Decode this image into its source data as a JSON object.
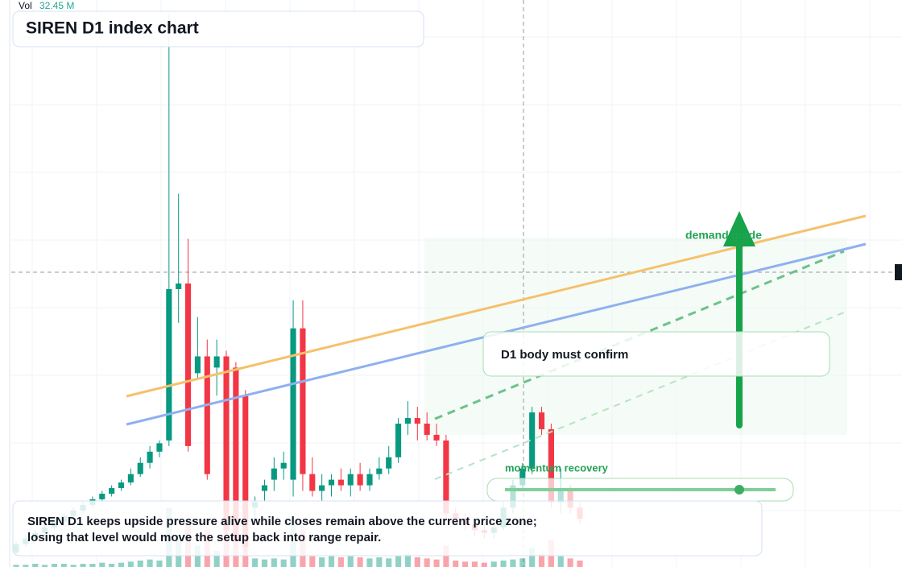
{
  "chart_data": {
    "type": "candlestick",
    "title": "SIREN D1 index chart",
    "up_color": "#089981",
    "down_color": "#f23645",
    "ylim": [
      0,
      100
    ],
    "vlim": [
      0,
      60
    ],
    "volume_label": "Vol",
    "volume_value": "32.45 M",
    "candles": [
      [
        2,
        4,
        1.5,
        3.5
      ],
      [
        3.5,
        5,
        3,
        4.5
      ],
      [
        4.5,
        6,
        4,
        5.5
      ],
      [
        5.5,
        7,
        5,
        6.5
      ],
      [
        6.5,
        8,
        6,
        7.5
      ],
      [
        7.5,
        9,
        7,
        8.5
      ],
      [
        8.5,
        10,
        8,
        9.5
      ],
      [
        9.5,
        11,
        9,
        10.5
      ],
      [
        10.5,
        12,
        10,
        11.5
      ],
      [
        11.5,
        13,
        11,
        12.5
      ],
      [
        12.5,
        14,
        12,
        13.5
      ],
      [
        13.5,
        15,
        13,
        14.5
      ],
      [
        14.5,
        17,
        14,
        16
      ],
      [
        16,
        19,
        15.5,
        18
      ],
      [
        18,
        21,
        17,
        20
      ],
      [
        20,
        22,
        19,
        21.5
      ],
      [
        22,
        98,
        21,
        49
      ],
      [
        49,
        66,
        43,
        50
      ],
      [
        50,
        58,
        20,
        21
      ],
      [
        34,
        44,
        33,
        37
      ],
      [
        37,
        40,
        15,
        16
      ],
      [
        35,
        40,
        30,
        37
      ],
      [
        37,
        38,
        5,
        6
      ],
      [
        35,
        36,
        3,
        4
      ],
      [
        30,
        31,
        2,
        3
      ],
      [
        10,
        12,
        8,
        11
      ],
      [
        13,
        15,
        11,
        14
      ],
      [
        15,
        19,
        13,
        17
      ],
      [
        17,
        20,
        15,
        18
      ],
      [
        15,
        47,
        12,
        42
      ],
      [
        42,
        47,
        13,
        16
      ],
      [
        16,
        19,
        12,
        13
      ],
      [
        13,
        16,
        11,
        14
      ],
      [
        14,
        16,
        12,
        15
      ],
      [
        15,
        17,
        13,
        14
      ],
      [
        14,
        17,
        12,
        16
      ],
      [
        16,
        18,
        13,
        14
      ],
      [
        14,
        17,
        13,
        16
      ],
      [
        16,
        19,
        15,
        17
      ],
      [
        17,
        21,
        16,
        19
      ],
      [
        19,
        26,
        18,
        25
      ],
      [
        25,
        29,
        23,
        26
      ],
      [
        26,
        28,
        22,
        25
      ],
      [
        25,
        27,
        22,
        23
      ],
      [
        23,
        25,
        21,
        22
      ],
      [
        22,
        23,
        8,
        9
      ],
      [
        9,
        10,
        7,
        8
      ],
      [
        8,
        9,
        6,
        7
      ],
      [
        7,
        8,
        5,
        6
      ],
      [
        6,
        7,
        4.5,
        5.5
      ],
      [
        5.5,
        7,
        4.5,
        6.5
      ],
      [
        6.5,
        11,
        6,
        10
      ],
      [
        10,
        15,
        9,
        14
      ],
      [
        14,
        18,
        13,
        17
      ],
      [
        17,
        28,
        16,
        27
      ],
      [
        27,
        28,
        23,
        24
      ],
      [
        24,
        25,
        10,
        11
      ],
      [
        11,
        17,
        9,
        13
      ],
      [
        13,
        14,
        9,
        10
      ],
      [
        10,
        11,
        7,
        8
      ]
    ],
    "volume": [
      2,
      2,
      3,
      2,
      3,
      3,
      2,
      3,
      3,
      4,
      3,
      4,
      5,
      6,
      7,
      6,
      55,
      30,
      40,
      20,
      35,
      15,
      40,
      35,
      30,
      8,
      7,
      8,
      7,
      45,
      35,
      10,
      9,
      10,
      9,
      10,
      9,
      8,
      9,
      8,
      10,
      12,
      9,
      8,
      7,
      20,
      6,
      5,
      5,
      4,
      5,
      6,
      7,
      8,
      18,
      12,
      25,
      10,
      8,
      6
    ],
    "annotations": {
      "demand": "demand guide",
      "confirm": "D1 body must confirm",
      "momentum": "momentum recovery"
    },
    "caption": [
      "SIREN D1 keeps upside pressure alive while closes remain above the current price zone;",
      "losing that level would move the setup back into range repair."
    ]
  }
}
